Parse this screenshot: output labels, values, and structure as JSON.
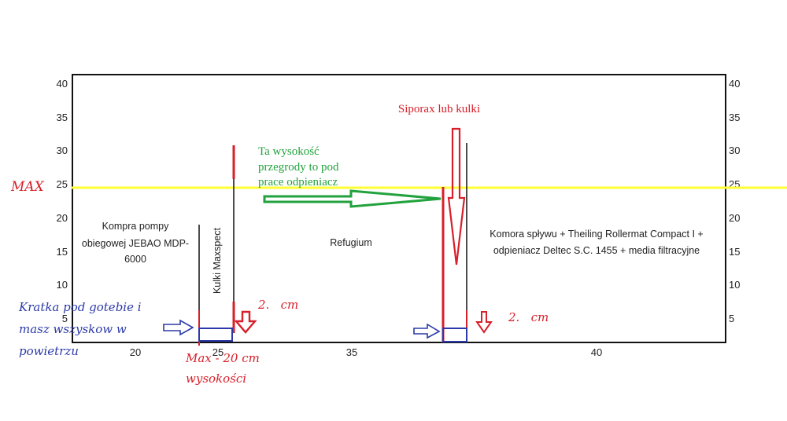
{
  "colors": {
    "axis": "#111111",
    "max_line": "#ffff33",
    "red": "#d81f2a",
    "green": "#22a23c",
    "blue": "#2b3aa8",
    "text": "#222222"
  },
  "axes": {
    "left_ticks": [
      "40",
      "35",
      "30",
      "25",
      "20",
      "15",
      "10",
      "5"
    ],
    "right_ticks": [
      "40",
      "35",
      "30",
      "25",
      "20",
      "15",
      "10",
      "5"
    ],
    "bottom_ticks": [
      "20",
      "25",
      "35",
      "40"
    ]
  },
  "max_label": "MAX",
  "labels": {
    "pump_line1": "Kompra pompy",
    "pump_line2": "obiegowej JEBAO MDP-",
    "pump_line3": "6000",
    "maxspect": "Kulki Maxspect",
    "refugium": "Refugium",
    "komora_line1": "Komora spływu + Theiling Rollermat Compact I +",
    "komora_line2": "odpieniacz Deltec S.C. 1455 + media filtracyjne",
    "siporax": "Siporax lub kulki",
    "green_line1": "Ta wysokość",
    "green_line2": "przegrody to pod",
    "green_line3": "prace odpieniacz",
    "two_cm_left": "2.   cm",
    "two_cm_right": "2.   cm",
    "grate_line1": "Kratka pod gotebie i",
    "grate_line2": "masz wszyskow w",
    "grate_line3": "powietrzu",
    "max_20_line1": "Max - 20 cm",
    "max_20_line2": "wysokości"
  }
}
